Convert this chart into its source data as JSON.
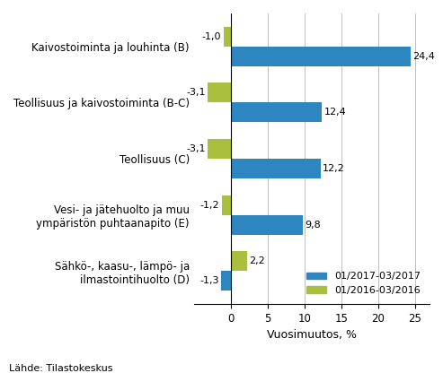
{
  "categories": [
    "Kaivostoiminta ja louhinta (B)",
    "Teollisuus ja kaivostoiminta (B-C)",
    "Teollisuus (C)",
    "Vesi- ja jätehuolto ja muu\nympäristön puhtaanapito (E)",
    "Sähkö-, kaasu-, lämpö- ja\nilmastointihuolto (D)"
  ],
  "series_2017": [
    24.4,
    12.4,
    12.2,
    9.8,
    -1.3
  ],
  "series_2016": [
    -1.0,
    -3.1,
    -3.1,
    -1.2,
    2.2
  ],
  "labels_2017": [
    "24,4",
    "12,4",
    "12,2",
    "9,8",
    "-1,3"
  ],
  "labels_2016": [
    "-1,0",
    "-3,1",
    "-3,1",
    "-1,2",
    "2,2"
  ],
  "color_2017": "#2E86C1",
  "color_2016": "#AABF3E",
  "legend_2017": "01/2017-03/2017",
  "legend_2016": "01/2016-03/2016",
  "xlabel": "Vuosimuutos, %",
  "footnote": "Lähde: Tilastokeskus",
  "bar_height": 0.35,
  "background_color": "#ffffff"
}
